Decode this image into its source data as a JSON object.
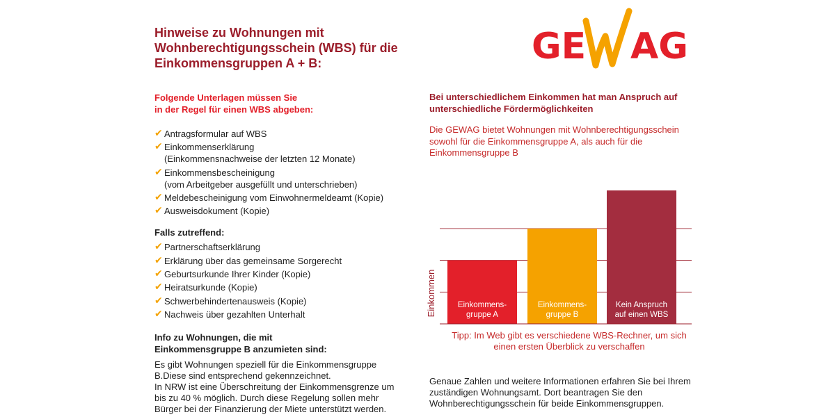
{
  "header": {
    "title_lines": [
      "Hinweise zu Wohnungen mit",
      "Wohnberechtigungsschein (WBS) für die",
      "Einkommensgruppen A + B:"
    ],
    "logo_text": "GEWAG"
  },
  "documents": {
    "heading_lines": [
      "Folgende Unterlagen müssen Sie",
      "in der Regel für einen WBS abgeben:"
    ],
    "items": [
      {
        "text": "Antragsformular auf WBS",
        "note": ""
      },
      {
        "text": "Einkommenserklärung",
        "note": "(Einkommensnachweise der letzten 12 Monate)"
      },
      {
        "text": "Einkommensbescheinigung",
        "note": "(vom Arbeitgeber ausgefüllt und unterschrieben)"
      },
      {
        "text": "Meldebescheinigung vom Einwohnermeldeamt (Kopie)",
        "note": ""
      },
      {
        "text": "Ausweisdokument (Kopie)",
        "note": ""
      }
    ],
    "optional_heading": "Falls zutreffend:",
    "optional_items": [
      "Partnerschaftserklärung",
      "Erklärung über das gemeinsame Sorgerecht",
      "Geburtsurkunde Ihrer Kinder (Kopie)",
      "Heiratsurkunde (Kopie)",
      "Schwerbehindertenausweis (Kopie)",
      "Nachweis über gezahlten Unterhalt"
    ],
    "checkmark": "✔"
  },
  "info_b": {
    "heading_lines": [
      "Info zu Wohnungen, die mit",
      "Einkommensgruppe B anzumieten sind:"
    ],
    "body_lines": [
      "Es gibt Wohnungen speziell für die Einkommensgruppe",
      "B.Diese sind entsprechend gekennzeichnet.",
      "In NRW ist eine Überschreitung der Einkommensgrenze um",
      "bis zu 40 % möglich. Durch diese Regelung sollen mehr",
      "Bürger bei der Finanzierung der Miete unterstützt werden."
    ]
  },
  "right": {
    "intro_bold_lines": [
      "Bei unterschiedlichem Einkommen hat man Anspruch auf",
      "unterschiedliche Fördermöglichkeiten"
    ],
    "intro_lines": [
      "Die GEWAG bietet Wohnungen mit Wohnberechtigungsschein",
      "sowohl für die Einkommensgruppe A, als auch für die",
      "Einkommensgruppe B"
    ],
    "tip_lines": [
      "Tipp: Im Web gibt es verschiedene WBS-Rechner, um sich",
      "einen ersten Überblick zu verschaffen"
    ],
    "bottom_lines": [
      "Genaue Zahlen und weitere Informationen erfahren Sie bei Ihrem",
      "zuständigen Wohnungsamt. Dort beantragen Sie den",
      "Wohnberechtigungsschein für beide Einkommensgruppen."
    ]
  },
  "chart_data": {
    "type": "bar",
    "ylabel": "Einkommen",
    "categories": [
      [
        "Einkommens-",
        "gruppe A"
      ],
      [
        "Einkommens-",
        "gruppe B"
      ],
      [
        "Kein Anspruch",
        "auf einen WBS"
      ]
    ],
    "values": [
      2,
      3,
      4.2
    ],
    "ylim": [
      0,
      4.2
    ],
    "grid": true,
    "colors": [
      "#e3202a",
      "#f5a200",
      "#a32d3f"
    ],
    "gridline_color": "#9b1d2a"
  }
}
